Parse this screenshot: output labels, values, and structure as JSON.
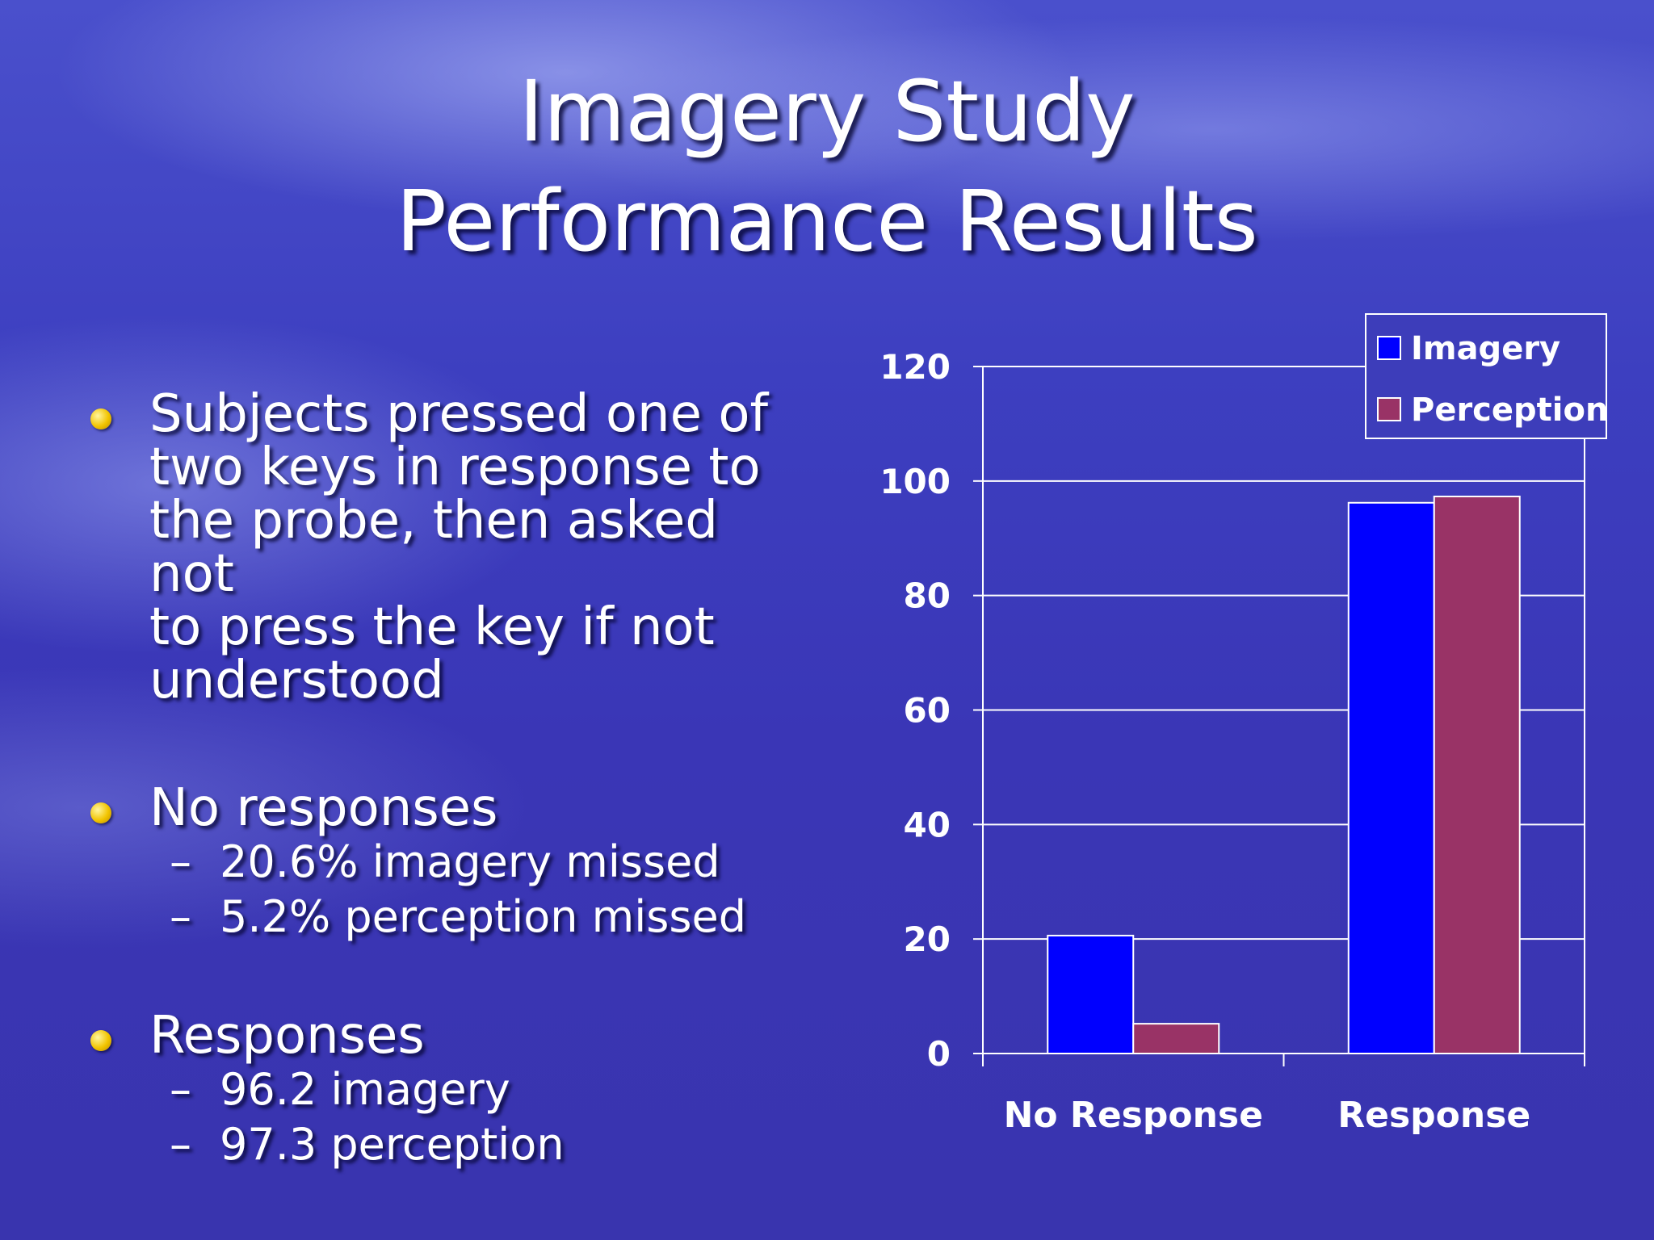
{
  "slide": {
    "title_line1": "Imagery Study",
    "title_line2": "Performance Results",
    "bullets": [
      {
        "lines": [
          "Subjects pressed one of",
          "two keys in response to",
          "the probe, then asked not",
          "to press the key if not",
          "understood"
        ],
        "subs": []
      },
      {
        "lines": [
          "No responses"
        ],
        "subs": [
          "20.6% imagery missed",
          "5.2% perception missed"
        ]
      },
      {
        "lines": [
          "Responses"
        ],
        "subs": [
          "96.2 imagery",
          "97.3 perception"
        ]
      }
    ],
    "dash": "–"
  },
  "chart_data": {
    "type": "bar",
    "categories": [
      "No Response",
      "Response"
    ],
    "series": [
      {
        "name": "Imagery",
        "values": [
          20.6,
          96.2
        ],
        "color": "#0000ff"
      },
      {
        "name": "Perception",
        "values": [
          5.2,
          97.3
        ],
        "color": "#993366"
      }
    ],
    "yticks": [
      "0",
      "20",
      "40",
      "60",
      "80",
      "100",
      "120"
    ],
    "ylim": [
      0,
      120
    ],
    "grid": true,
    "legend_position": "top-right"
  }
}
